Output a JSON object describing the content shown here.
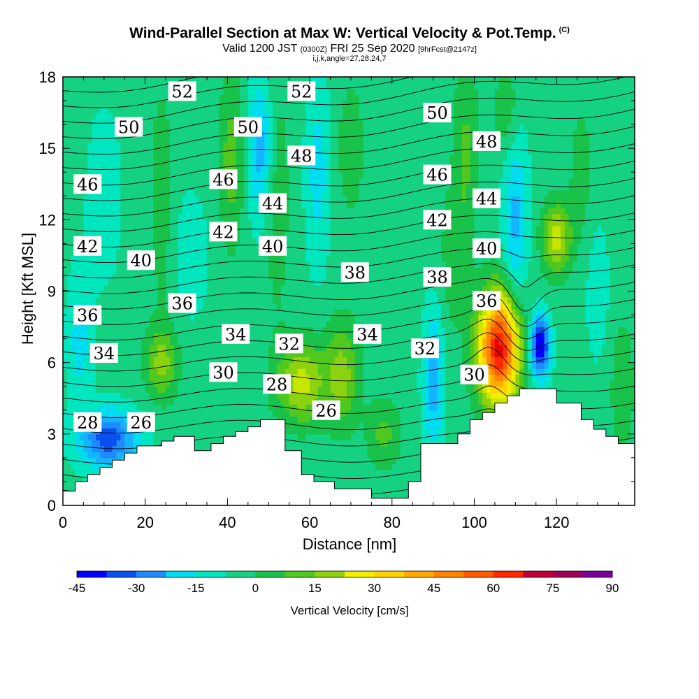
{
  "title": {
    "main": "Wind-Parallel Section at Max W: Vertical Velocity & Pot.Temp.",
    "copyright": "(C)",
    "valid_prefix": "Valid 1200 JST",
    "valid_zulu": "(0300Z)",
    "valid_date": "FRI 25 Sep 2020",
    "forecast": "[9hrFcst@2147z]",
    "indices": "i,j,k,angle=27,28,24,7"
  },
  "chart_data": {
    "type": "heatmap",
    "xlabel": "Distance [nm]",
    "ylabel": "Height [Kft MSL]",
    "xlim": [
      0,
      139
    ],
    "ylim": [
      0,
      18
    ],
    "x_ticks": [
      0,
      20,
      40,
      60,
      80,
      100,
      120
    ],
    "y_ticks": [
      0,
      3,
      6,
      9,
      12,
      15,
      18
    ],
    "grid": false,
    "colorbar": {
      "label": "Vertical Velocity [cm/s]",
      "min": -45,
      "max": 90,
      "step": 7.5,
      "tick_labels": [
        "-45",
        "-30",
        "-15",
        "0",
        "15",
        "30",
        "45",
        "60",
        "75",
        "90"
      ],
      "colors": [
        "#0000ff",
        "#0a50f0",
        "#1e8cff",
        "#14b4ff",
        "#00dcf0",
        "#00e6be",
        "#14d282",
        "#19c34b",
        "#50c81e",
        "#8cd20f",
        "#c8e600",
        "#f0f000",
        "#ffd200",
        "#ffaa00",
        "#ff8200",
        "#ff5a00",
        "#ff2800",
        "#e60000",
        "#be0032",
        "#a0005a",
        "#78009b"
      ]
    },
    "terrain": [
      [
        0,
        0.6
      ],
      [
        3,
        0.6
      ],
      [
        3,
        1.0
      ],
      [
        6,
        1.0
      ],
      [
        6,
        1.3
      ],
      [
        9,
        1.3
      ],
      [
        9,
        1.6
      ],
      [
        12,
        1.6
      ],
      [
        12,
        1.9
      ],
      [
        15,
        1.9
      ],
      [
        15,
        2.2
      ],
      [
        18,
        2.2
      ],
      [
        18,
        2.5
      ],
      [
        24,
        2.5
      ],
      [
        24,
        2.7
      ],
      [
        27,
        2.7
      ],
      [
        27,
        2.9
      ],
      [
        32,
        2.9
      ],
      [
        32,
        2.3
      ],
      [
        36,
        2.3
      ],
      [
        36,
        2.6
      ],
      [
        39,
        2.6
      ],
      [
        39,
        2.9
      ],
      [
        42,
        2.9
      ],
      [
        42,
        3.1
      ],
      [
        45,
        3.1
      ],
      [
        45,
        3.3
      ],
      [
        48,
        3.3
      ],
      [
        48,
        3.6
      ],
      [
        54,
        3.6
      ],
      [
        54,
        2.3
      ],
      [
        58,
        2.3
      ],
      [
        58,
        1.3
      ],
      [
        61,
        1.3
      ],
      [
        61,
        1.0
      ],
      [
        66,
        1.0
      ],
      [
        66,
        0.7
      ],
      [
        75,
        0.7
      ],
      [
        75,
        0.3
      ],
      [
        84,
        0.3
      ],
      [
        84,
        1.0
      ],
      [
        87,
        1.0
      ],
      [
        87,
        2.6
      ],
      [
        96,
        2.6
      ],
      [
        96,
        3.0
      ],
      [
        99,
        3.0
      ],
      [
        99,
        3.6
      ],
      [
        102,
        3.6
      ],
      [
        102,
        3.9
      ],
      [
        105,
        3.9
      ],
      [
        105,
        4.3
      ],
      [
        108,
        4.3
      ],
      [
        108,
        4.6
      ],
      [
        111,
        4.6
      ],
      [
        111,
        4.9
      ],
      [
        120,
        4.9
      ],
      [
        120,
        4.3
      ],
      [
        126,
        4.3
      ],
      [
        126,
        3.6
      ],
      [
        129,
        3.6
      ],
      [
        129,
        3.2
      ],
      [
        132,
        3.2
      ],
      [
        132,
        2.9
      ],
      [
        135,
        2.9
      ],
      [
        135,
        2.6
      ],
      [
        139,
        2.6
      ],
      [
        139,
        0
      ],
      [
        0,
        0
      ]
    ],
    "wcells": [
      {
        "x": 11,
        "y": 2.8,
        "sx": 7,
        "sy": 1.2,
        "w": -38
      },
      {
        "x": 4,
        "y": 7.0,
        "sx": 3,
        "sy": 3.0,
        "w": -14
      },
      {
        "x": 10,
        "y": 13.0,
        "sx": 4,
        "sy": 3.5,
        "w": -10
      },
      {
        "x": 24,
        "y": 6.0,
        "sx": 4,
        "sy": 1.5,
        "w": 22
      },
      {
        "x": 24,
        "y": 13.0,
        "sx": 3,
        "sy": 5.0,
        "w": 9
      },
      {
        "x": 31,
        "y": 10.5,
        "sx": 4,
        "sy": 2.5,
        "w": -10
      },
      {
        "x": 41,
        "y": 14.5,
        "sx": 3,
        "sy": 3.5,
        "w": 16
      },
      {
        "x": 48,
        "y": 15.0,
        "sx": 3,
        "sy": 3.0,
        "w": -22
      },
      {
        "x": 52,
        "y": 13.0,
        "sx": 3,
        "sy": 5.0,
        "w": 10
      },
      {
        "x": 58,
        "y": 5.2,
        "sx": 6,
        "sy": 1.7,
        "w": 30
      },
      {
        "x": 62,
        "y": 14.0,
        "sx": 3,
        "sy": 4.0,
        "w": -14
      },
      {
        "x": 70,
        "y": 15.0,
        "sx": 3,
        "sy": 2.5,
        "w": 12
      },
      {
        "x": 68,
        "y": 5.5,
        "sx": 4,
        "sy": 2.2,
        "w": 22
      },
      {
        "x": 78,
        "y": 3.0,
        "sx": 4,
        "sy": 1.5,
        "w": 14
      },
      {
        "x": 90,
        "y": 5.2,
        "sx": 2.5,
        "sy": 3.0,
        "w": -22
      },
      {
        "x": 95,
        "y": 10.5,
        "sx": 3,
        "sy": 3.0,
        "w": 10
      },
      {
        "x": 98,
        "y": 15.0,
        "sx": 3,
        "sy": 4.0,
        "w": 13
      },
      {
        "x": 108,
        "y": 16.5,
        "sx": 3,
        "sy": 2.0,
        "w": 12
      },
      {
        "x": 106,
        "y": 6.6,
        "sx": 5,
        "sy": 2.3,
        "w": 82
      },
      {
        "x": 110,
        "y": 12.0,
        "sx": 3,
        "sy": 4.0,
        "w": -20
      },
      {
        "x": 116,
        "y": 6.7,
        "sx": 2.3,
        "sy": 1.3,
        "w": -52
      },
      {
        "x": 120,
        "y": 11.2,
        "sx": 3.5,
        "sy": 1.5,
        "w": 30
      },
      {
        "x": 126,
        "y": 14.0,
        "sx": 3,
        "sy": 3.0,
        "w": 8
      },
      {
        "x": 130,
        "y": 9.0,
        "sx": 3,
        "sy": 3.0,
        "w": -8
      },
      {
        "x": 136,
        "y": 5.0,
        "sx": 3,
        "sy": 3.0,
        "w": 10
      }
    ],
    "theta_labels": [
      {
        "v": "52",
        "x": 29,
        "y": 17.4
      },
      {
        "v": "52",
        "x": 58,
        "y": 17.4
      },
      {
        "v": "50",
        "x": 16,
        "y": 15.9
      },
      {
        "v": "50",
        "x": 45,
        "y": 15.9
      },
      {
        "v": "50",
        "x": 91,
        "y": 16.5
      },
      {
        "v": "48",
        "x": 58,
        "y": 14.7
      },
      {
        "v": "48",
        "x": 103,
        "y": 15.3
      },
      {
        "v": "46",
        "x": 6,
        "y": 13.5
      },
      {
        "v": "46",
        "x": 39,
        "y": 13.7
      },
      {
        "v": "46",
        "x": 91,
        "y": 13.9
      },
      {
        "v": "44",
        "x": 51,
        "y": 12.7
      },
      {
        "v": "44",
        "x": 103,
        "y": 12.9
      },
      {
        "v": "42",
        "x": 6,
        "y": 10.9
      },
      {
        "v": "42",
        "x": 39,
        "y": 11.5
      },
      {
        "v": "42",
        "x": 91,
        "y": 12.0
      },
      {
        "v": "40",
        "x": 19,
        "y": 10.3
      },
      {
        "v": "40",
        "x": 51,
        "y": 10.9
      },
      {
        "v": "40",
        "x": 103,
        "y": 10.8
      },
      {
        "v": "38",
        "x": 71,
        "y": 9.8
      },
      {
        "v": "38",
        "x": 91,
        "y": 9.6
      },
      {
        "v": "36",
        "x": 6,
        "y": 8.0
      },
      {
        "v": "36",
        "x": 29,
        "y": 8.5
      },
      {
        "v": "36",
        "x": 103,
        "y": 8.6
      },
      {
        "v": "34",
        "x": 10,
        "y": 6.4
      },
      {
        "v": "34",
        "x": 42,
        "y": 7.2
      },
      {
        "v": "34",
        "x": 74,
        "y": 7.2
      },
      {
        "v": "32",
        "x": 55,
        "y": 6.8
      },
      {
        "v": "32",
        "x": 88,
        "y": 6.6
      },
      {
        "v": "30",
        "x": 39,
        "y": 5.6
      },
      {
        "v": "30",
        "x": 100,
        "y": 5.5
      },
      {
        "v": "28",
        "x": 6,
        "y": 3.5
      },
      {
        "v": "28",
        "x": 52,
        "y": 5.1
      },
      {
        "v": "26",
        "x": 19,
        "y": 3.5
      },
      {
        "v": "26",
        "x": 64,
        "y": 4.0
      }
    ]
  }
}
